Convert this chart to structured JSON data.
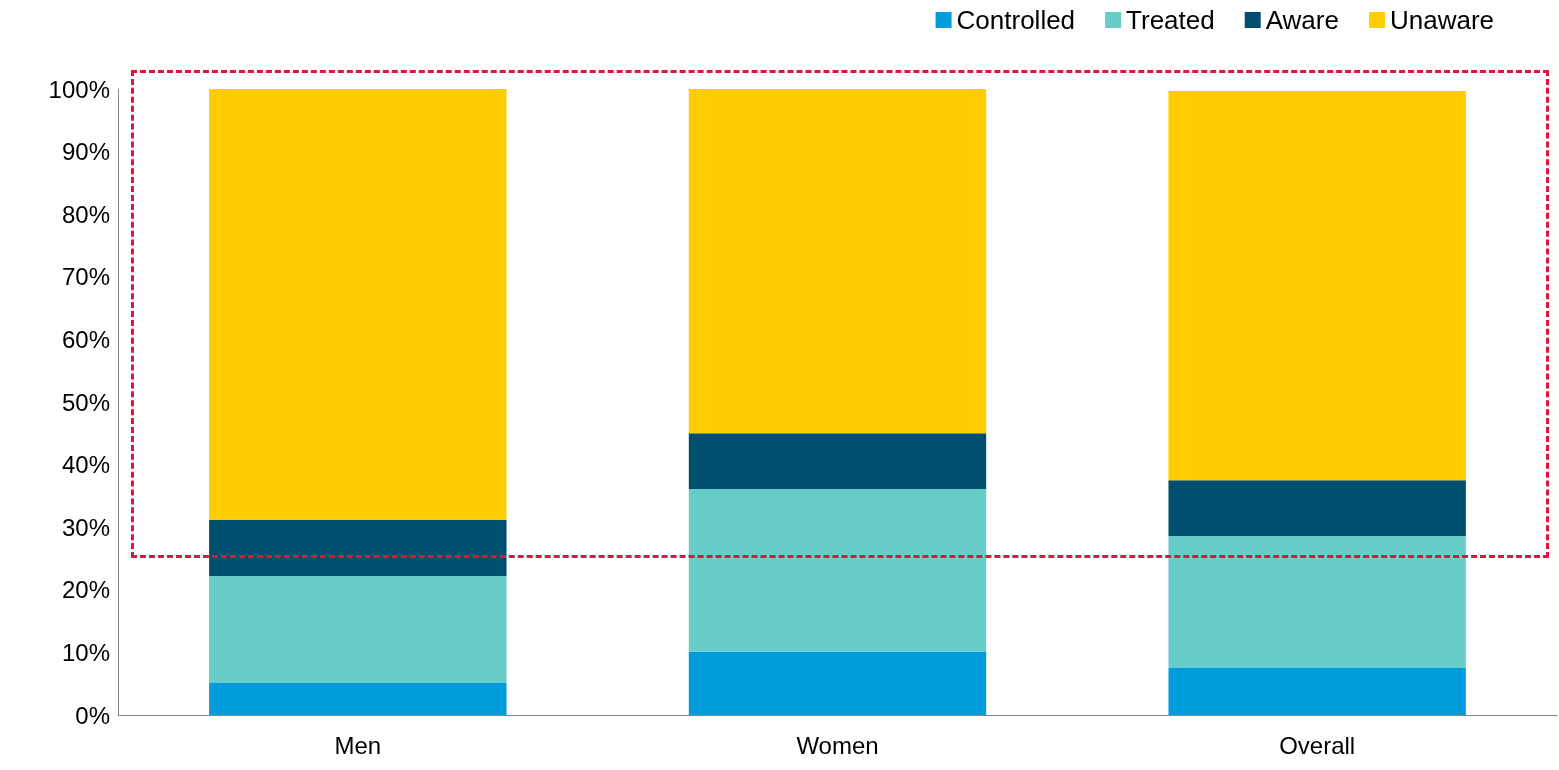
{
  "chart_data": {
    "type": "bar",
    "stacked": true,
    "categories": [
      "Men",
      "Women",
      "Overall"
    ],
    "series": [
      {
        "name": "Controlled",
        "color": "#009ddc",
        "values": [
          5.1,
          10.1,
          7.5
        ]
      },
      {
        "name": "Treated",
        "color": "#66cdc8",
        "values": [
          17.1,
          26,
          21.1
        ]
      },
      {
        "name": "Aware",
        "color": "#004f6e",
        "values": [
          9,
          8.9,
          8.9
        ]
      },
      {
        "name": "Unaware",
        "color": "#ffcc00",
        "values": [
          68.8,
          55,
          62.2
        ]
      }
    ],
    "ylim": [
      0,
      100
    ],
    "yticks": [
      {
        "value": 0,
        "label": "0%"
      },
      {
        "value": 10,
        "label": "10%"
      },
      {
        "value": 20,
        "label": "20%"
      },
      {
        "value": 30,
        "label": "30%"
      },
      {
        "value": 40,
        "label": "40%"
      },
      {
        "value": 50,
        "label": "50%"
      },
      {
        "value": 60,
        "label": "60%"
      },
      {
        "value": 70,
        "label": "70%"
      },
      {
        "value": 80,
        "label": "80%"
      },
      {
        "value": 90,
        "label": "90%"
      },
      {
        "value": 100,
        "label": "100%"
      }
    ],
    "grid": false,
    "legend": "top right"
  }
}
